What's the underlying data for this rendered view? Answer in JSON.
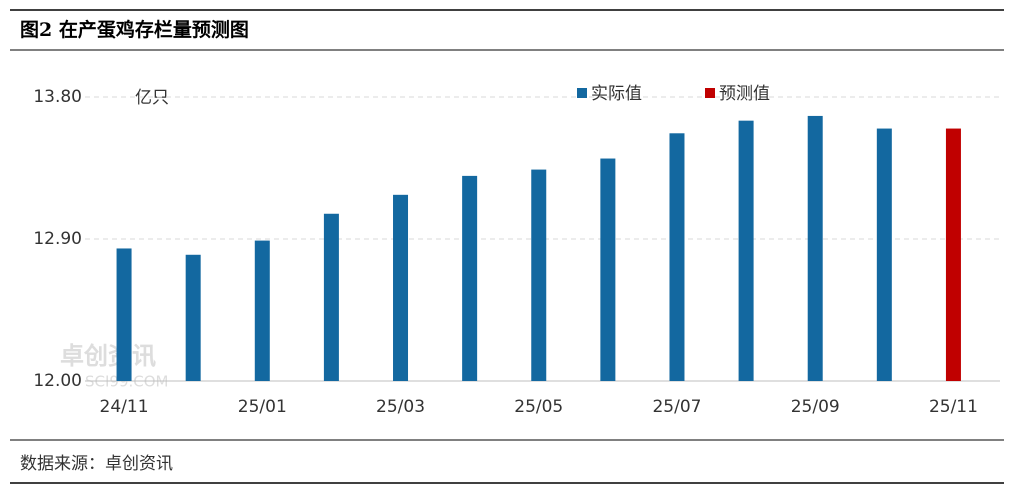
{
  "chart_data": {
    "type": "bar",
    "title": "图2 在产蛋鸡存栏量预测图",
    "unit_label": "亿只",
    "source": "数据来源：卓创资讯",
    "watermark": [
      "卓创资讯",
      "SCI99.COM"
    ],
    "categories": [
      "24/11",
      null,
      "25/01",
      null,
      "25/03",
      null,
      "25/05",
      null,
      "25/07",
      null,
      "25/09",
      null,
      "25/11"
    ],
    "series": [
      {
        "name": "实际值",
        "color": "#1368a0",
        "values": [
          12.84,
          12.8,
          12.89,
          13.06,
          13.18,
          13.3,
          13.34,
          13.41,
          13.57,
          13.65,
          13.68,
          13.6,
          null
        ]
      },
      {
        "name": "预测值",
        "color": "#c00000",
        "values": [
          null,
          null,
          null,
          null,
          null,
          null,
          null,
          null,
          null,
          null,
          null,
          null,
          13.6
        ]
      }
    ],
    "ylim": [
      12,
      13.8
    ],
    "yticks": [
      {
        "value": 12,
        "label": "12.00"
      },
      {
        "value": 12.9,
        "label": "12.90"
      },
      {
        "value": 13.8,
        "label": "13.80"
      }
    ],
    "grid": true,
    "legend": "top"
  }
}
